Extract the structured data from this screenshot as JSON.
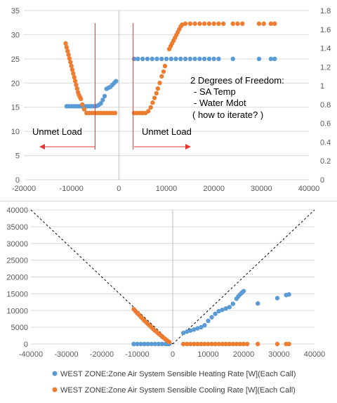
{
  "chart_data": [
    {
      "type": "scatter",
      "title": "",
      "xlabel": "",
      "ylabel": "",
      "xlim": [
        -20000,
        40000
      ],
      "ylim": [
        0,
        35
      ],
      "y2lim": [
        0,
        1.8
      ],
      "x_ticks": [
        "-20000",
        "-10000",
        "0",
        "10000",
        "20000",
        "30000",
        "40000"
      ],
      "y_ticks": [
        "0",
        "5",
        "10",
        "15",
        "20",
        "25",
        "30",
        "35"
      ],
      "y2_ticks": [
        "0",
        "0.2",
        "0.4",
        "0.6",
        "0.8",
        "1",
        "1.2",
        "1.4",
        "1.6",
        "1.8"
      ],
      "series": [
        {
          "name": "SA Temp",
          "color": "#5b9bd5",
          "axis": "left",
          "points": [
            [
              -11000,
              15.2
            ],
            [
              -10500,
              15.2
            ],
            [
              -10000,
              15.2
            ],
            [
              -9500,
              15.2
            ],
            [
              -9000,
              15.2
            ],
            [
              -8500,
              15.2
            ],
            [
              -8000,
              15.2
            ],
            [
              -7500,
              15.2
            ],
            [
              -7000,
              15.2
            ],
            [
              -6500,
              15.2
            ],
            [
              -6000,
              15.2
            ],
            [
              -5500,
              15.2
            ],
            [
              -5000,
              15.2
            ],
            [
              -4600,
              15.3
            ],
            [
              -4200,
              15.5
            ],
            [
              -3800,
              15.8
            ],
            [
              -3400,
              16.5
            ],
            [
              -3000,
              17.3
            ],
            [
              -2600,
              18.8
            ],
            [
              -2200,
              19.0
            ],
            [
              -1800,
              19.2
            ],
            [
              -1400,
              19.6
            ],
            [
              -1000,
              20.0
            ],
            [
              -600,
              20.4
            ],
            [
              3200,
              25.0
            ],
            [
              4000,
              25.0
            ],
            [
              5000,
              25.0
            ],
            [
              6000,
              25.0
            ],
            [
              7000,
              25.0
            ],
            [
              8000,
              25.0
            ],
            [
              9000,
              25.0
            ],
            [
              10000,
              25.0
            ],
            [
              11000,
              25.0
            ],
            [
              12000,
              25.0
            ],
            [
              13000,
              25.0
            ],
            [
              14000,
              25.0
            ],
            [
              15000,
              25.0
            ],
            [
              16000,
              25.0
            ],
            [
              17000,
              25.0
            ],
            [
              18000,
              25.0
            ],
            [
              19000,
              25.0
            ],
            [
              20000,
              25.0
            ],
            [
              21000,
              25.0
            ],
            [
              24000,
              25.0
            ],
            [
              29500,
              25.0
            ],
            [
              32000,
              25.0
            ],
            [
              32800,
              25.0
            ]
          ]
        },
        {
          "name": "Water Mdot",
          "color": "#ed7d31",
          "axis": "right",
          "points": [
            [
              -11200,
              1.45
            ],
            [
              -11000,
              1.41
            ],
            [
              -10800,
              1.37
            ],
            [
              -10600,
              1.33
            ],
            [
              -10400,
              1.29
            ],
            [
              -10200,
              1.25
            ],
            [
              -10000,
              1.21
            ],
            [
              -9800,
              1.17
            ],
            [
              -9600,
              1.13
            ],
            [
              -9400,
              1.09
            ],
            [
              -9200,
              1.05
            ],
            [
              -9000,
              1.01
            ],
            [
              -8800,
              0.97
            ],
            [
              -8600,
              0.93
            ],
            [
              -8400,
              0.9
            ],
            [
              -8200,
              0.88
            ],
            [
              -8000,
              0.86
            ],
            [
              -7700,
              0.8
            ],
            [
              -7300,
              0.75
            ],
            [
              -6800,
              0.71
            ],
            [
              -6200,
              0.71
            ],
            [
              -5600,
              0.71
            ],
            [
              -5000,
              0.71
            ],
            [
              -4400,
              0.71
            ],
            [
              -3800,
              0.71
            ],
            [
              -3200,
              0.71
            ],
            [
              -2600,
              0.71
            ],
            [
              -2000,
              0.71
            ],
            [
              -1400,
              0.71
            ],
            [
              -800,
              0.71
            ],
            [
              3200,
              0.71
            ],
            [
              3800,
              0.71
            ],
            [
              4400,
              0.71
            ],
            [
              5000,
              0.71
            ],
            [
              5600,
              0.71
            ],
            [
              6200,
              0.73
            ],
            [
              6700,
              0.77
            ],
            [
              7100,
              0.82
            ],
            [
              7500,
              0.87
            ],
            [
              7900,
              0.92
            ],
            [
              8200,
              0.97
            ],
            [
              8600,
              1.03
            ],
            [
              9000,
              1.1
            ],
            [
              9400,
              1.15
            ],
            [
              9700,
              1.21
            ],
            [
              10600,
              1.39
            ],
            [
              10900,
              1.42
            ],
            [
              11200,
              1.45
            ],
            [
              11500,
              1.48
            ],
            [
              11800,
              1.51
            ],
            [
              12100,
              1.54
            ],
            [
              12400,
              1.57
            ],
            [
              12700,
              1.6
            ],
            [
              13000,
              1.63
            ],
            [
              13300,
              1.65
            ],
            [
              14000,
              1.66
            ],
            [
              15000,
              1.66
            ],
            [
              16000,
              1.66
            ],
            [
              17000,
              1.66
            ],
            [
              18000,
              1.66
            ],
            [
              19000,
              1.66
            ],
            [
              20000,
              1.66
            ],
            [
              21000,
              1.66
            ],
            [
              22000,
              1.66
            ],
            [
              24000,
              1.66
            ],
            [
              25000,
              1.66
            ],
            [
              26000,
              1.66
            ],
            [
              29500,
              1.66
            ],
            [
              30500,
              1.66
            ],
            [
              32000,
              1.66
            ],
            [
              32800,
              1.66
            ]
          ]
        }
      ],
      "annotations": {
        "freedom_title": "2 Degrees of Freedom:",
        "freedom_line1": "- SA Temp",
        "freedom_line2": "- Water Mdot",
        "freedom_line3": "( how to iterate? )",
        "unmet_left": "Unmet Load",
        "unmet_right": "Unmet Load"
      },
      "reference_lines_x": [
        -5000,
        3000
      ]
    },
    {
      "type": "scatter",
      "title": "",
      "xlabel": "",
      "ylabel": "",
      "xlim": [
        -40000,
        40000
      ],
      "ylim": [
        0,
        40000
      ],
      "x_ticks": [
        "-40000",
        "-30000",
        "-20000",
        "-10000",
        "0",
        "10000",
        "20000",
        "30000",
        "40000"
      ],
      "y_ticks": [
        "0",
        "5000",
        "10000",
        "15000",
        "20000",
        "25000",
        "30000",
        "35000",
        "40000"
      ],
      "reference_lines": "dashed y=|x|",
      "legend_position": "bottom",
      "series": [
        {
          "name": "WEST ZONE:Zone Air System Sensible Heating Rate [W](Each Call)",
          "color": "#5b9bd5",
          "points": [
            [
              -11000,
              0
            ],
            [
              -10000,
              0
            ],
            [
              -9000,
              0
            ],
            [
              -8000,
              0
            ],
            [
              -7000,
              0
            ],
            [
              -6000,
              0
            ],
            [
              -5000,
              0
            ],
            [
              -4000,
              0
            ],
            [
              -3000,
              0
            ],
            [
              -2000,
              0
            ],
            [
              -1500,
              0
            ],
            [
              -1000,
              0
            ],
            [
              3000,
              3300
            ],
            [
              4000,
              3700
            ],
            [
              5000,
              4000
            ],
            [
              6000,
              4300
            ],
            [
              7000,
              4700
            ],
            [
              8000,
              5000
            ],
            [
              9000,
              5600
            ],
            [
              10000,
              6900
            ],
            [
              11000,
              8000
            ],
            [
              12000,
              9000
            ],
            [
              13000,
              9800
            ],
            [
              14000,
              10200
            ],
            [
              15000,
              10600
            ],
            [
              16000,
              11000
            ],
            [
              17000,
              12000
            ],
            [
              18000,
              13500
            ],
            [
              18500,
              14200
            ],
            [
              19000,
              14800
            ],
            [
              19500,
              15300
            ],
            [
              20000,
              15800
            ],
            [
              24000,
              12100
            ],
            [
              29500,
              13700
            ],
            [
              32000,
              14600
            ],
            [
              32800,
              14800
            ]
          ]
        },
        {
          "name": "WEST ZONE:Zone Air System Sensible Cooling Rate [W](Each Call)",
          "color": "#ed7d31",
          "points": [
            [
              -11000,
              10400
            ],
            [
              -10500,
              9800
            ],
            [
              -10000,
              9200
            ],
            [
              -9500,
              8700
            ],
            [
              -9000,
              8100
            ],
            [
              -8500,
              7600
            ],
            [
              -8000,
              7000
            ],
            [
              -7500,
              6500
            ],
            [
              -7000,
              6000
            ],
            [
              -6500,
              5500
            ],
            [
              -6000,
              5000
            ],
            [
              -5500,
              4500
            ],
            [
              -5000,
              4000
            ],
            [
              -4500,
              3600
            ],
            [
              -4000,
              3100
            ],
            [
              -3500,
              2700
            ],
            [
              -3000,
              2200
            ],
            [
              -2500,
              1800
            ],
            [
              -2000,
              1400
            ],
            [
              -1500,
              1000
            ],
            [
              -1000,
              600
            ],
            [
              3000,
              0
            ],
            [
              4000,
              0
            ],
            [
              5000,
              0
            ],
            [
              6000,
              0
            ],
            [
              7000,
              0
            ],
            [
              8000,
              0
            ],
            [
              9000,
              0
            ],
            [
              10000,
              0
            ],
            [
              11000,
              0
            ],
            [
              12000,
              0
            ],
            [
              13000,
              0
            ],
            [
              14000,
              0
            ],
            [
              15000,
              0
            ],
            [
              16000,
              0
            ],
            [
              17000,
              0
            ],
            [
              18000,
              0
            ],
            [
              19000,
              0
            ],
            [
              20000,
              0
            ],
            [
              21000,
              0
            ],
            [
              24000,
              0
            ],
            [
              29500,
              0
            ],
            [
              32000,
              0
            ],
            [
              32800,
              0
            ]
          ]
        }
      ]
    }
  ]
}
